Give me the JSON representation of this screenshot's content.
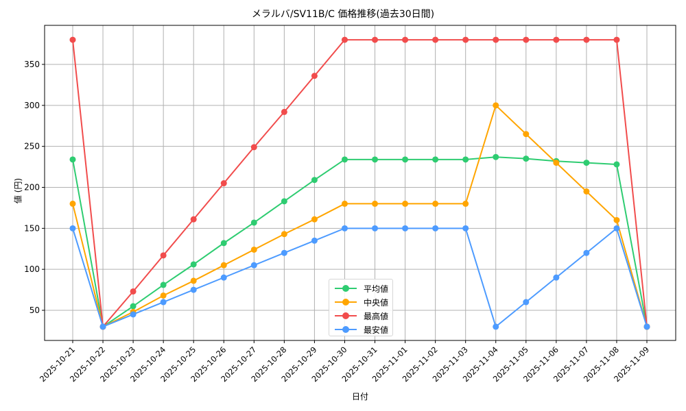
{
  "chart_data": {
    "type": "line",
    "title": "メラルバ/SV11B/C 価格推移(過去30日間)",
    "xlabel": "日付",
    "ylabel": "値 (円)",
    "x": [
      "2025-10-21",
      "2025-10-22",
      "2025-10-23",
      "2025-10-24",
      "2025-10-25",
      "2025-10-26",
      "2025-10-27",
      "2025-10-28",
      "2025-10-29",
      "2025-10-30",
      "2025-10-31",
      "2025-11-01",
      "2025-11-02",
      "2025-11-03",
      "2025-11-04",
      "2025-11-05",
      "2025-11-06",
      "2025-11-07",
      "2025-11-08",
      "2025-11-09"
    ],
    "yticks": [
      50,
      100,
      150,
      200,
      250,
      300,
      350
    ],
    "ylim": [
      13,
      397
    ],
    "grid": true,
    "legend_position": "lower center",
    "series": [
      {
        "name": "平均値",
        "color": "#2ecc71",
        "values": [
          234,
          30,
          55,
          81,
          106,
          132,
          157,
          183,
          209,
          234,
          234,
          234,
          234,
          234,
          237,
          235,
          232,
          230,
          228,
          30
        ]
      },
      {
        "name": "中央値",
        "color": "#ffa500",
        "values": [
          180,
          30,
          48,
          68,
          86,
          105,
          124,
          143,
          161,
          180,
          180,
          180,
          180,
          180,
          300,
          265,
          230,
          195,
          160,
          30
        ]
      },
      {
        "name": "最高値",
        "color": "#f14c4c",
        "values": [
          380,
          30,
          73,
          117,
          161,
          205,
          249,
          292,
          336,
          380,
          380,
          380,
          380,
          380,
          380,
          380,
          380,
          380,
          380,
          30
        ]
      },
      {
        "name": "最安値",
        "color": "#4d9bff",
        "values": [
          150,
          30,
          45,
          60,
          75,
          90,
          105,
          120,
          135,
          150,
          150,
          150,
          150,
          150,
          30,
          60,
          90,
          120,
          150,
          30
        ]
      }
    ]
  }
}
